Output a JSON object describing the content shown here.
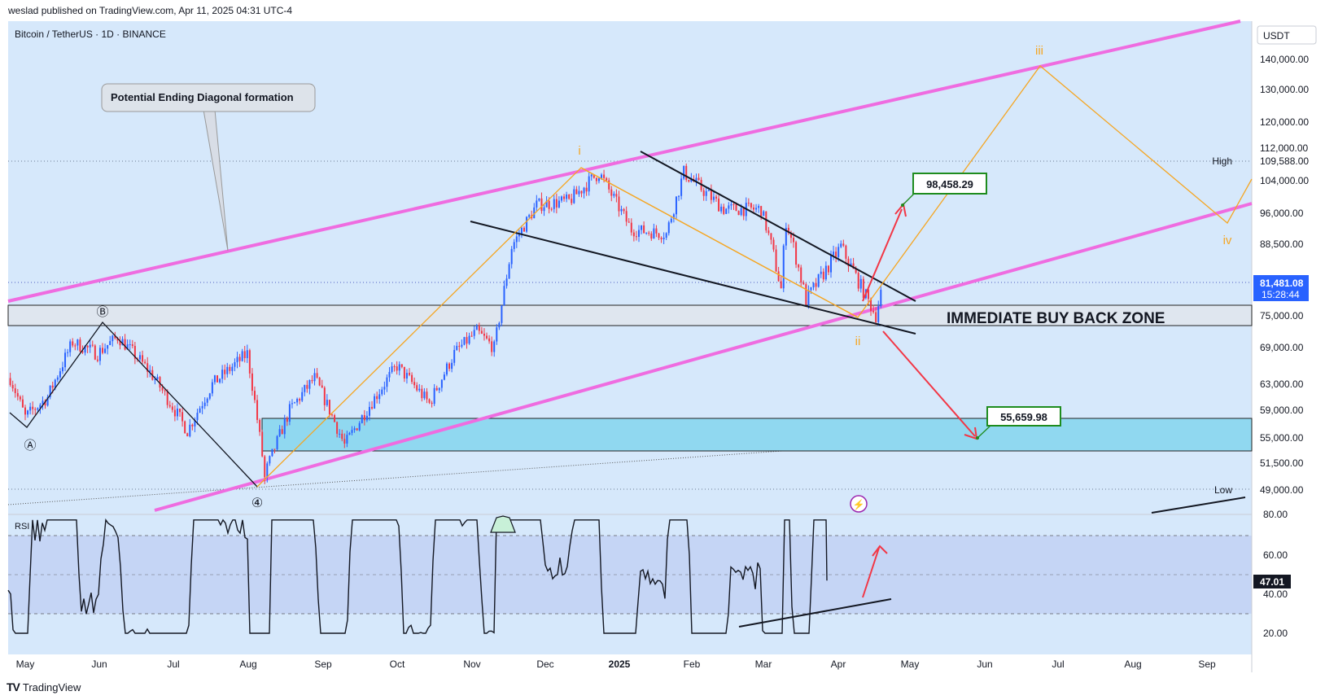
{
  "header": {
    "published": "weslad published on TradingView.com, Apr 11, 2025 04:31 UTC-4"
  },
  "chart": {
    "symbol": "Bitcoin / TetherUS · 1D · BINANCE",
    "currency": "USDT"
  },
  "annotations": {
    "callout": "Potential Ending Diagonal formation",
    "zone": "IMMEDIATE BUY BACK ZONE",
    "target_up": "98,458.29",
    "target_down": "55,659.98",
    "high_label": "High",
    "high_value": "109,588.00",
    "low_label": "Low",
    "low_value": "49,000.00",
    "last_price": "81,481.08",
    "countdown": "15:28:44",
    "waves": {
      "a": "Ⓐ",
      "b": "Ⓑ",
      "four": "④",
      "i": "i",
      "ii": "ii",
      "iii": "iii",
      "iv": "iv"
    }
  },
  "rsi": {
    "label": "RSI",
    "value": "47.01"
  },
  "footer": {
    "brand": "TradingView",
    "logo": "TV"
  },
  "colors": {
    "bg": "#d6e8fb",
    "pink": "#ef6ce0",
    "orange": "#f5a623",
    "green": "#1e8c1e",
    "red": "#f23645",
    "up": "#2962ff",
    "down": "#f23645",
    "zone": "#90d8f0",
    "rsi_band": "#c5d5f5"
  },
  "chart_data": [
    {
      "type": "candlestick",
      "title": "Bitcoin / TetherUS · 1D · BINANCE",
      "x_tick_labels": [
        "May",
        "Jun",
        "Jul",
        "Aug",
        "Sep",
        "Oct",
        "Nov",
        "Dec",
        "2025",
        "Feb",
        "Mar",
        "Apr",
        "May",
        "Jun",
        "Jul",
        "Aug",
        "Sep"
      ],
      "y_tick_labels": [
        "140,000.00",
        "130,000.00",
        "120,000.00",
        "112,000.00",
        "104,000.00",
        "96,000.00",
        "88,500.00",
        "75,000.00",
        "69,000.00",
        "63,000.00",
        "59,000.00",
        "55,000.00",
        "51,500.00"
      ],
      "price_path": [
        [
          "2024-04-25",
          64000
        ],
        [
          "2024-05-01",
          58000
        ],
        [
          "2024-05-10",
          61000
        ],
        [
          "2024-05-20",
          70000
        ],
        [
          "2024-05-30",
          68000
        ],
        [
          "2024-06-07",
          71000
        ],
        [
          "2024-06-20",
          65000
        ],
        [
          "2024-07-05",
          56000
        ],
        [
          "2024-07-15",
          63000
        ],
        [
          "2024-07-29",
          68000
        ],
        [
          "2024-08-05",
          50000
        ],
        [
          "2024-08-15",
          59000
        ],
        [
          "2024-08-25",
          64000
        ],
        [
          "2024-09-06",
          54000
        ],
        [
          "2024-09-20",
          62000
        ],
        [
          "2024-09-27",
          66000
        ],
        [
          "2024-10-10",
          60000
        ],
        [
          "2024-10-20",
          68000
        ],
        [
          "2024-10-29",
          72000
        ],
        [
          "2024-11-05",
          69000
        ],
        [
          "2024-11-12",
          88000
        ],
        [
          "2024-11-22",
          98000
        ],
        [
          "2024-12-05",
          99000
        ],
        [
          "2024-12-17",
          106000
        ],
        [
          "2024-12-30",
          92000
        ],
        [
          "2025-01-13",
          91000
        ],
        [
          "2025-01-20",
          106000
        ],
        [
          "2025-02-05",
          97000
        ],
        [
          "2025-02-20",
          97000
        ],
        [
          "2025-02-28",
          80000
        ],
        [
          "2025-03-02",
          94000
        ],
        [
          "2025-03-10",
          78000
        ],
        [
          "2025-03-24",
          88000
        ],
        [
          "2025-04-07",
          75000
        ],
        [
          "2025-04-10",
          81481
        ]
      ],
      "projection": [
        [
          "2025-04-10",
          81481
        ],
        [
          "2025-06-24",
          137000
        ],
        [
          "2025-09-07",
          95000
        ],
        [
          "2025-09-27",
          104000
        ]
      ],
      "levels": {
        "high": 109588,
        "low": 49000,
        "buy_zone": [
          73500,
          77000
        ],
        "lower_zone": [
          52800,
          58500
        ]
      },
      "series": [
        {
          "name": "RSI",
          "last": 47.01,
          "ylim": [
            15,
            85
          ],
          "bands": [
            30,
            50,
            70
          ]
        }
      ]
    }
  ]
}
